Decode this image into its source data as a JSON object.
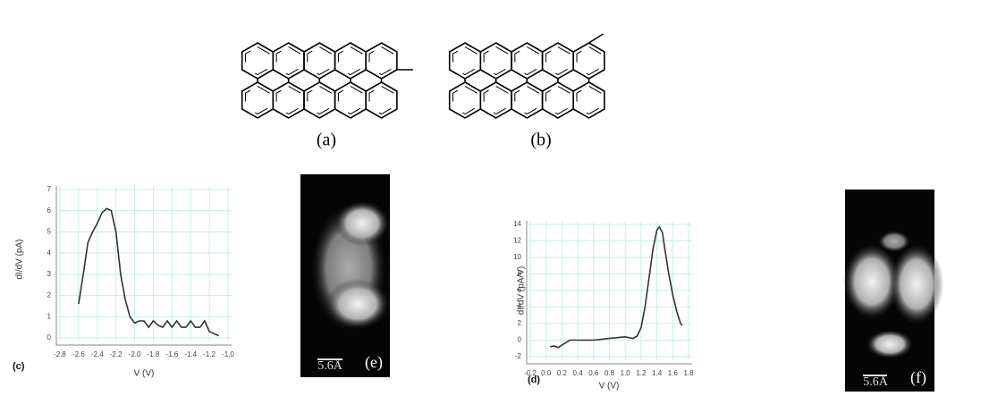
{
  "molecules": [
    {
      "label": "(a)"
    },
    {
      "label": "(b)"
    }
  ],
  "chart_data": [
    {
      "type": "line",
      "panel_label": "(c)",
      "xlabel": "V (V)",
      "ylabel": "dI/dV (pA)",
      "color": "#333333",
      "grid": true,
      "x": [
        -2.6,
        -2.55,
        -2.5,
        -2.45,
        -2.4,
        -2.35,
        -2.3,
        -2.25,
        -2.2,
        -2.15,
        -2.1,
        -2.05,
        -2.0,
        -1.95,
        -1.9,
        -1.85,
        -1.8,
        -1.75,
        -1.7,
        -1.65,
        -1.6,
        -1.55,
        -1.5,
        -1.45,
        -1.4,
        -1.35,
        -1.3,
        -1.25,
        -1.2,
        -1.15,
        -1.1
      ],
      "values": [
        1.6,
        3.0,
        4.5,
        5.0,
        5.4,
        5.9,
        6.1,
        6.0,
        5.0,
        3.0,
        1.8,
        1.0,
        0.7,
        0.8,
        0.8,
        0.5,
        0.8,
        0.6,
        0.5,
        0.8,
        0.5,
        0.8,
        0.5,
        0.5,
        0.8,
        0.5,
        0.5,
        0.8,
        0.3,
        0.2,
        0.1
      ],
      "xlim": [
        -2.8,
        -1.0
      ],
      "ylim": [
        0,
        7
      ],
      "xticks": [
        -2.8,
        -2.6,
        -2.4,
        -2.2,
        {
          "value": -2,
          "label": "-2.0"
        },
        -1.8,
        -1.6,
        -1.4,
        -1.2,
        {
          "value": -1,
          "label": "-1.0"
        }
      ],
      "yticks": [
        0,
        1,
        2,
        3,
        4,
        5,
        6,
        7
      ]
    },
    {
      "type": "line",
      "panel_label": "(d)",
      "xlabel": "V (V)",
      "ylabel": "dI/dV (pA/V)",
      "color": "#333333",
      "grid": true,
      "x": [
        0.05,
        0.1,
        0.15,
        0.2,
        0.25,
        0.3,
        0.4,
        0.5,
        0.6,
        0.7,
        0.8,
        0.9,
        1.0,
        1.1,
        1.15,
        1.2,
        1.25,
        1.3,
        1.35,
        1.4,
        1.43,
        1.47,
        1.5,
        1.55,
        1.6,
        1.65,
        1.7,
        1.72
      ],
      "values": [
        -0.8,
        -0.7,
        -0.9,
        -0.6,
        -0.3,
        0,
        0,
        0,
        0,
        0.1,
        0.2,
        0.3,
        0.4,
        0.2,
        0.5,
        1.5,
        4,
        7.5,
        11,
        13.3,
        13.7,
        13,
        11,
        8,
        5.5,
        3.5,
        2,
        1.8
      ],
      "xlim": [
        -0.2,
        1.8
      ],
      "ylim": [
        -2,
        14
      ],
      "xticks": [
        -0.2,
        {
          "value": 0,
          "label": "0.0"
        },
        0.2,
        0.4,
        0.6,
        0.8,
        {
          "value": 1,
          "label": "1.0"
        },
        1.2,
        1.4,
        1.6,
        1.8
      ],
      "yticks": [
        -2,
        0,
        2,
        4,
        6,
        8,
        10,
        12,
        14
      ]
    }
  ],
  "images": [
    {
      "label": "(e)",
      "scale_bar": "5.6Å"
    },
    {
      "label": "(f)",
      "scale_bar": "5.6Å"
    }
  ]
}
